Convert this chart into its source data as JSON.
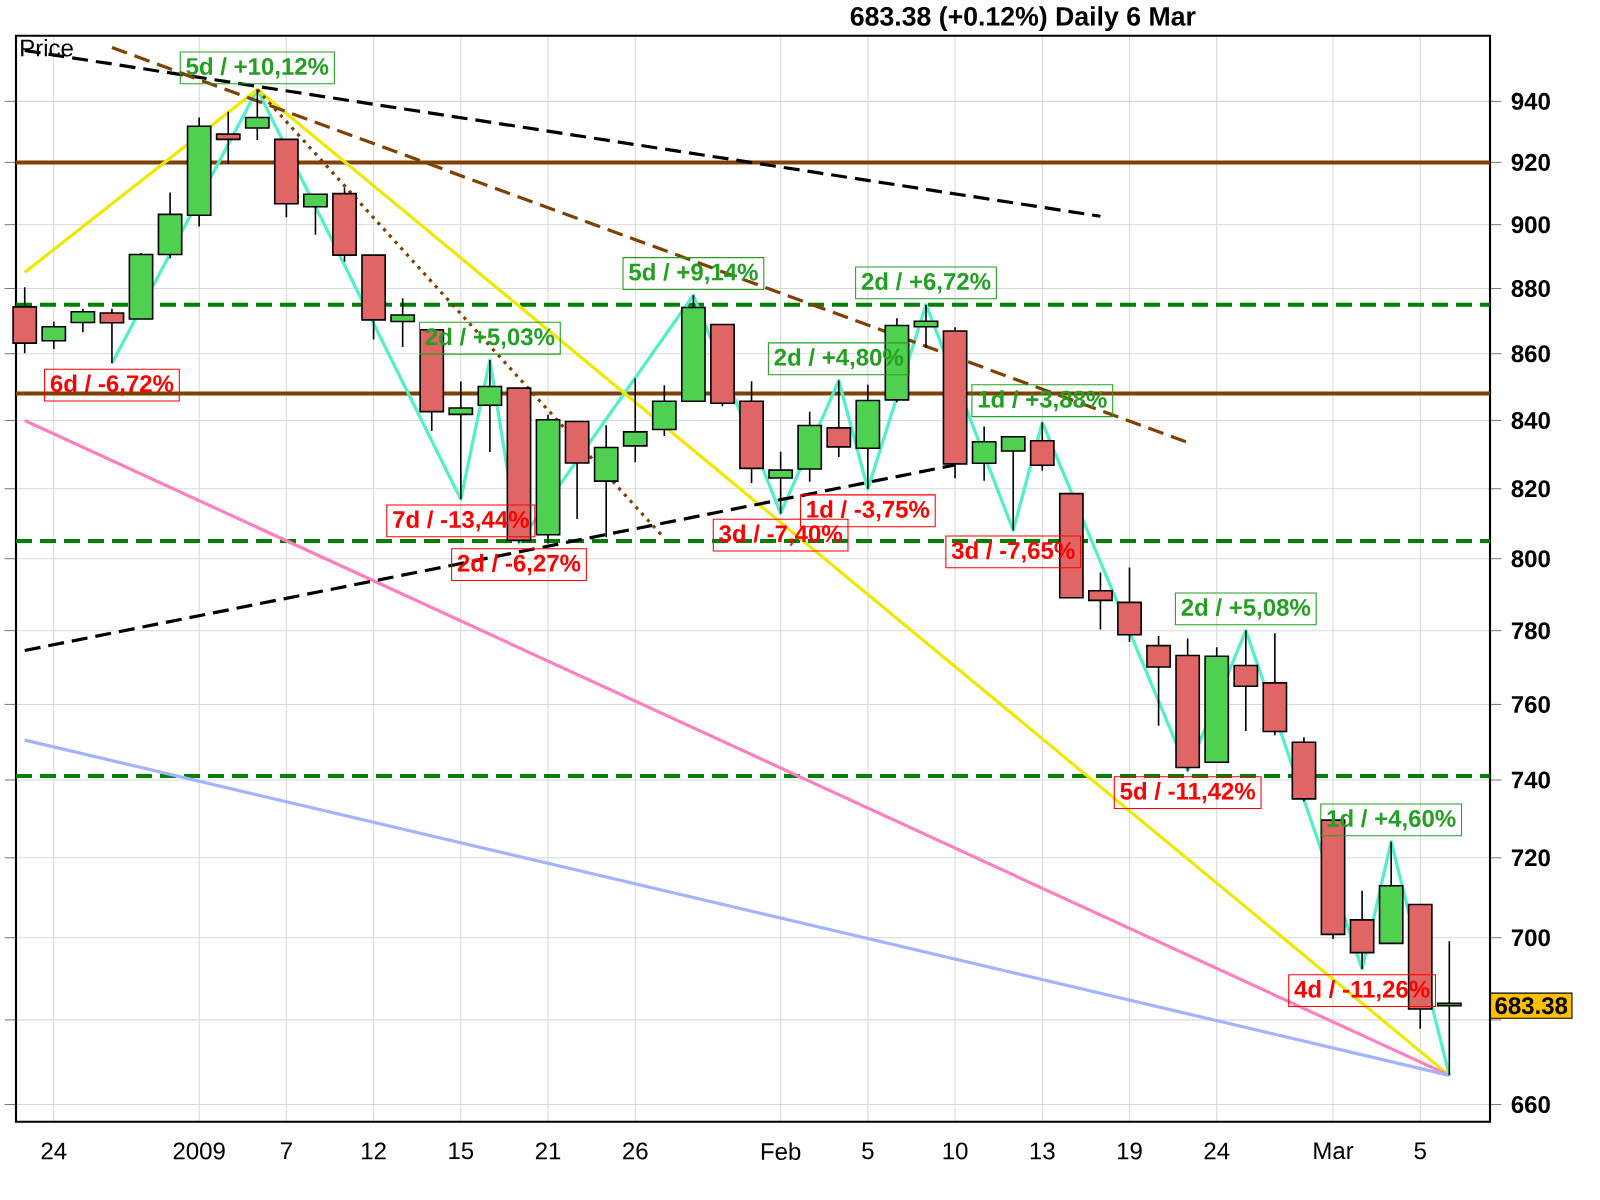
{
  "chart_data": {
    "type": "candlestick",
    "title": "683.38 (+0.12%)   Daily  6 Mar",
    "ylabel": "Price",
    "categories": [
      null,
      "24",
      null,
      null,
      null,
      null,
      "2009",
      null,
      null,
      "7",
      null,
      null,
      "12",
      null,
      null,
      "15",
      null,
      null,
      "21",
      null,
      null,
      "26",
      null,
      null,
      null,
      null,
      "Feb",
      null,
      null,
      "5",
      null,
      null,
      "10",
      null,
      null,
      "13",
      null,
      null,
      "19",
      null,
      null,
      "24",
      null,
      null,
      null,
      "Mar",
      null,
      null,
      "5",
      null
    ],
    "ohlc": [
      [
        874.3,
        880.4,
        860.1,
        863.2
      ],
      [
        863.9,
        869.8,
        861.4,
        868.2
      ],
      [
        869.5,
        873.7,
        866.5,
        872.8
      ],
      [
        872.4,
        873.7,
        857.1,
        869.4
      ],
      [
        870.6,
        891.1,
        870.6,
        890.6
      ],
      [
        890.6,
        910.3,
        889.4,
        903.3
      ],
      [
        903.0,
        934.7,
        899.4,
        931.8
      ],
      [
        929.2,
        936.6,
        919.5,
        927.5
      ],
      [
        931.2,
        943.9,
        927.3,
        934.7
      ],
      [
        927.5,
        927.5,
        902.4,
        906.7
      ],
      [
        905.7,
        910.0,
        896.8,
        909.7
      ],
      [
        909.9,
        911.9,
        888.3,
        890.4
      ],
      [
        890.4,
        890.4,
        864.3,
        870.3
      ],
      [
        869.8,
        877.0,
        862.0,
        871.8
      ],
      [
        867.3,
        867.3,
        836.9,
        842.6
      ],
      [
        841.8,
        851.6,
        817.0,
        843.7
      ],
      [
        844.5,
        858.1,
        830.7,
        850.1
      ],
      [
        849.6,
        849.6,
        804.5,
        805.2
      ],
      [
        806.8,
        841.7,
        804.3,
        840.2
      ],
      [
        839.7,
        839.7,
        811.3,
        827.5
      ],
      [
        822.2,
        838.6,
        806.1,
        832.0
      ],
      [
        832.5,
        852.5,
        827.7,
        836.6
      ],
      [
        837.3,
        850.5,
        835.4,
        845.7
      ],
      [
        845.7,
        877.9,
        845.7,
        874.1
      ],
      [
        868.9,
        868.9,
        844.2,
        845.1
      ],
      [
        845.7,
        851.7,
        821.7,
        825.9
      ],
      [
        823.1,
        830.8,
        812.9,
        825.4
      ],
      [
        825.7,
        842.6,
        822.0,
        838.5
      ],
      [
        837.8,
        851.9,
        829.2,
        832.2
      ],
      [
        831.8,
        850.6,
        819.9,
        845.9
      ],
      [
        846.1,
        870.8,
        845.4,
        868.6
      ],
      [
        868.2,
        875.0,
        861.7,
        869.9
      ],
      [
        866.9,
        868.1,
        823.0,
        827.2
      ],
      [
        827.4,
        838.2,
        822.3,
        833.7
      ],
      [
        831.0,
        835.2,
        808.1,
        835.2
      ],
      [
        834.0,
        839.4,
        825.2,
        826.8
      ],
      [
        818.6,
        818.6,
        789.2,
        789.2
      ],
      [
        791.1,
        796.2,
        780.4,
        788.4
      ],
      [
        787.9,
        797.6,
        777.0,
        778.9
      ],
      [
        775.9,
        778.7,
        754.3,
        770.1
      ],
      [
        773.3,
        777.9,
        742.4,
        743.3
      ],
      [
        744.7,
        775.5,
        744.7,
        773.1
      ],
      [
        770.6,
        780.1,
        752.9,
        764.9
      ],
      [
        765.8,
        779.4,
        751.8,
        752.8
      ],
      [
        749.9,
        751.3,
        734.5,
        735.1
      ],
      [
        729.6,
        729.6,
        699.7,
        700.8
      ],
      [
        704.4,
        711.7,
        692.3,
        696.3
      ],
      [
        698.6,
        724.1,
        698.6,
        712.9
      ],
      [
        708.3,
        708.3,
        677.9,
        682.6
      ],
      [
        684.0,
        699.1,
        666.8,
        683.4
      ]
    ],
    "colors": [
      "#e06666",
      "#50d050",
      "#50d050",
      "#e06666",
      "#50d050",
      "#50d050",
      "#50d050",
      "#e06666",
      "#50d050",
      "#e06666",
      "#50d050",
      "#e06666",
      "#e06666",
      "#50d050",
      "#e06666",
      "#50d050",
      "#50d050",
      "#e06666",
      "#50d050",
      "#e06666",
      "#50d050",
      "#50d050",
      "#50d050",
      "#50d050",
      "#e06666",
      "#e06666",
      "#50d050",
      "#50d050",
      "#e06666",
      "#50d050",
      "#50d050",
      "#50d050",
      "#e06666",
      "#50d050",
      "#50d050",
      "#e06666",
      "#e06666",
      "#e06666",
      "#e06666",
      "#e06666",
      "#e06666",
      "#50d050",
      "#e06666",
      "#e06666",
      "#e06666",
      "#e06666",
      "#e06666",
      "#50d050",
      "#e06666",
      "#50d050"
    ],
    "series": [
      {
        "type": "line",
        "color": "#50f0c8",
        "line_style": "solid",
        "values": [
          null,
          null,
          null,
          857.1,
          null,
          null,
          null,
          null,
          943.9,
          null,
          null,
          null,
          null,
          null,
          null,
          817.0,
          858.1,
          804.5,
          null,
          null,
          null,
          null,
          null,
          877.9,
          null,
          null,
          812.9,
          null,
          851.9,
          819.9,
          null,
          875.0,
          null,
          null,
          808.1,
          839.4,
          null,
          null,
          null,
          null,
          742.4,
          null,
          780.1,
          null,
          null,
          null,
          692.3,
          724.1,
          null,
          666.8
        ]
      },
      {
        "type": "line",
        "color": "#f0e800",
        "line_style": "solid",
        "values": [
          885,
          null,
          null,
          null,
          null,
          null,
          null,
          null,
          943.9,
          null,
          null,
          null,
          null,
          null,
          null,
          null,
          null,
          null,
          null,
          null,
          null,
          null,
          null,
          null,
          null,
          null,
          null,
          null,
          null,
          null,
          null,
          null,
          null,
          null,
          null,
          null,
          null,
          null,
          null,
          null,
          null,
          null,
          null,
          null,
          null,
          null,
          null,
          null,
          null,
          666.8
        ]
      },
      {
        "type": "line",
        "color": "#ff80c0",
        "line_style": "solid",
        "values": [
          840,
          null,
          null,
          null,
          null,
          null,
          null,
          null,
          null,
          null,
          null,
          null,
          null,
          null,
          null,
          null,
          null,
          null,
          null,
          null,
          null,
          null,
          null,
          null,
          null,
          null,
          null,
          null,
          null,
          null,
          null,
          null,
          null,
          null,
          null,
          null,
          null,
          null,
          null,
          null,
          null,
          null,
          null,
          null,
          null,
          null,
          null,
          null,
          null,
          666.8
        ]
      },
      {
        "type": "line",
        "color": "#a0b4ff",
        "line_style": "solid",
        "values": [
          750.6,
          null,
          null,
          null,
          null,
          null,
          null,
          null,
          null,
          null,
          null,
          null,
          null,
          null,
          null,
          null,
          null,
          null,
          null,
          null,
          null,
          null,
          null,
          null,
          null,
          null,
          null,
          null,
          null,
          null,
          null,
          null,
          null,
          null,
          null,
          null,
          null,
          null,
          null,
          null,
          null,
          null,
          null,
          null,
          null,
          null,
          null,
          null,
          null,
          666.8
        ]
      },
      {
        "type": "line",
        "color": "#000000",
        "line_style": "dashed",
        "values": [
          774.6,
          null,
          null,
          null,
          null,
          null,
          null,
          null,
          null,
          null,
          null,
          null,
          null,
          null,
          null,
          null,
          null,
          null,
          null,
          null,
          null,
          null,
          null,
          null,
          null,
          null,
          null,
          null,
          null,
          null,
          null,
          null,
          826.9,
          null,
          null,
          null,
          null,
          null,
          null,
          null,
          null,
          null,
          null,
          null,
          null,
          null,
          null,
          null,
          null,
          null
        ]
      },
      {
        "type": "line",
        "color": "#000000",
        "line_style": "dashed",
        "values": [
          957,
          null,
          null,
          null,
          null,
          null,
          null,
          null,
          null,
          null,
          null,
          null,
          null,
          null,
          null,
          null,
          null,
          null,
          null,
          null,
          null,
          null,
          null,
          null,
          null,
          null,
          null,
          null,
          null,
          null,
          null,
          null,
          null,
          null,
          null,
          null,
          null,
          902.7,
          null,
          null,
          null,
          null,
          null,
          null,
          null,
          null,
          null,
          null,
          null,
          null
        ]
      },
      {
        "type": "line",
        "color": "#804000",
        "line_style": "dashed",
        "values": [
          null,
          null,
          null,
          958,
          null,
          null,
          null,
          null,
          null,
          null,
          null,
          null,
          null,
          null,
          null,
          null,
          null,
          null,
          null,
          null,
          null,
          null,
          null,
          null,
          null,
          null,
          null,
          null,
          null,
          null,
          null,
          null,
          null,
          null,
          null,
          null,
          null,
          null,
          null,
          null,
          833.5,
          null,
          null,
          null,
          null,
          null,
          null,
          null,
          null,
          null
        ]
      },
      {
        "type": "line",
        "color": "#804000",
        "line_style": "dotted",
        "values": [
          null,
          null,
          null,
          null,
          null,
          null,
          null,
          null,
          943.9,
          null,
          null,
          null,
          null,
          null,
          null,
          null,
          null,
          null,
          null,
          null,
          null,
          null,
          805.8,
          null,
          null,
          null,
          null,
          null,
          null,
          null,
          null,
          null,
          null,
          null,
          null,
          null,
          null,
          null,
          null,
          null,
          null,
          null,
          null,
          null,
          null,
          null,
          null,
          null,
          null,
          null
        ]
      }
    ],
    "ref_lines": [
      {
        "axis": "y",
        "value": 875,
        "color": "#008000",
        "line_style": "dashed"
      },
      {
        "axis": "y",
        "value": 805,
        "color": "#008000",
        "line_style": "dashed"
      },
      {
        "axis": "y",
        "value": 741,
        "color": "#008000",
        "line_style": "dashed"
      },
      {
        "axis": "y",
        "value": 848,
        "color": "#804000",
        "line_style": "solid"
      },
      {
        "axis": "y",
        "value": 920,
        "color": "#804000",
        "line_style": "solid"
      }
    ],
    "annotations": [
      {
        "text": "6d / -6,72%",
        "y": 857.1
      },
      {
        "text": "5d / +10,12%",
        "y": 943.9
      },
      {
        "text": "7d / -13,44%",
        "y": 817.0
      },
      {
        "text": "2d / +5,03%",
        "y": 858.1
      },
      {
        "text": "2d / -6,27%",
        "y": 804.5
      },
      {
        "text": "5d / +9,14%",
        "y": 877.9
      },
      {
        "text": "3d / -7,40%",
        "y": 812.9
      },
      {
        "text": "2d / +4,80%",
        "y": 851.9
      },
      {
        "text": "1d / -3,75%",
        "y": 819.9
      },
      {
        "text": "2d / +6,72%",
        "y": 875.0
      },
      {
        "text": "3d / -7,65%",
        "y": 808.1
      },
      {
        "text": "1d / +3,88%",
        "y": 839.4
      },
      {
        "text": "5d / -11,42%",
        "y": 742.4
      },
      {
        "text": "2d / +5,08%",
        "y": 780.1
      },
      {
        "text": "4d / -11,26%",
        "y": 692.3
      },
      {
        "text": "1d / +4,60%",
        "y": 724.1
      },
      {
        "text": "683.38",
        "y": 683.38
      }
    ],
    "log": true,
    "ylim": [
      656,
      962
    ],
    "yticks": [
      660,
      {
        "value": 680,
        "label": null
      },
      700,
      720,
      740,
      760,
      780,
      800,
      820,
      840,
      860,
      880,
      900,
      920,
      940
    ],
    "grid": true
  }
}
